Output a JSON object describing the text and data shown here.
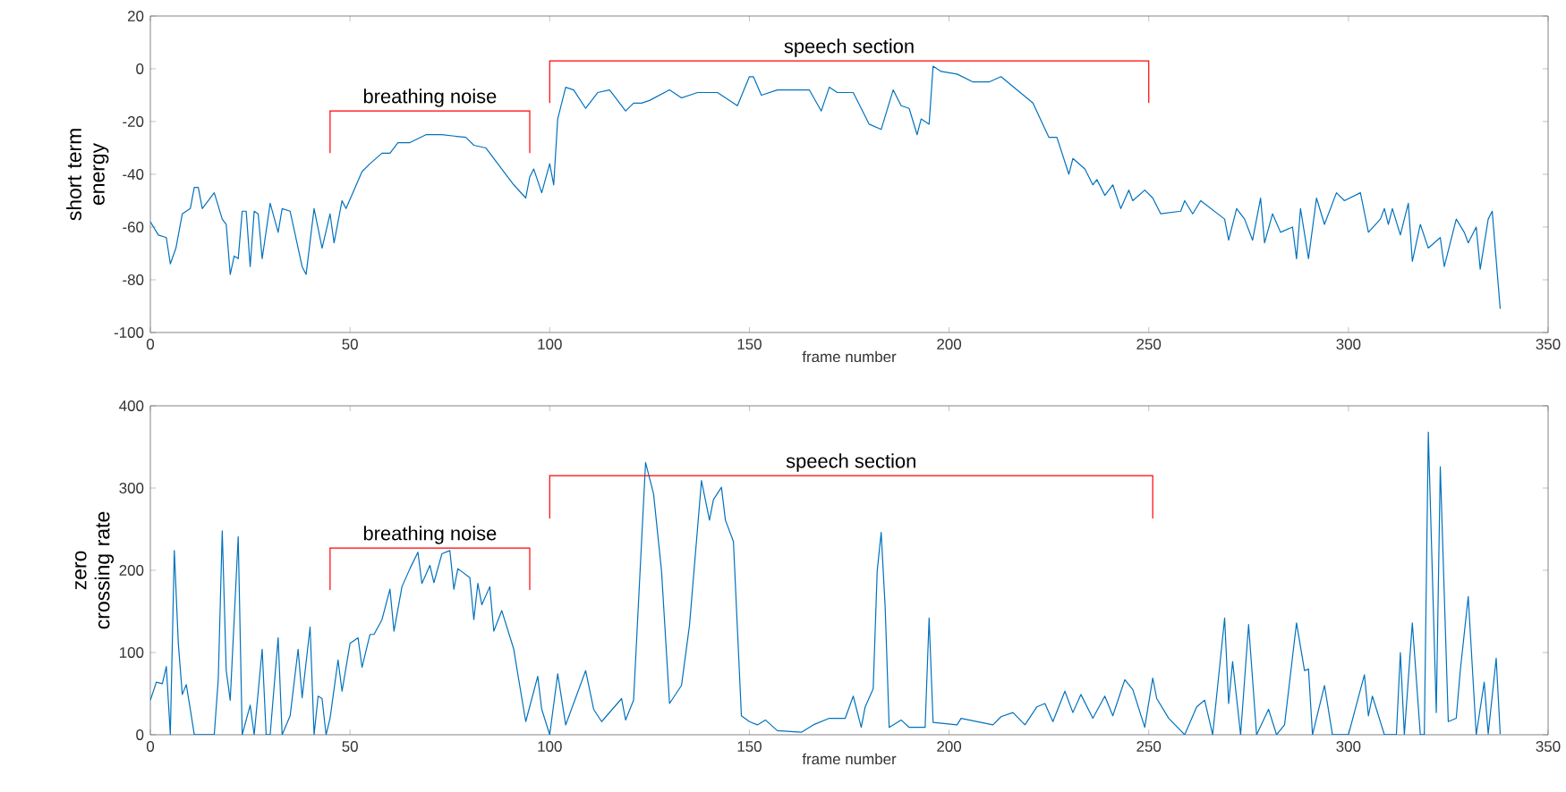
{
  "chart_data": [
    {
      "type": "line",
      "xlabel": "frame number",
      "ylabel": "short term energy",
      "xlim": [
        0,
        350
      ],
      "ylim": [
        -100,
        20
      ],
      "xticks": [
        0,
        50,
        100,
        150,
        200,
        250,
        300,
        350
      ],
      "yticks": [
        -100,
        -80,
        -60,
        -40,
        -20,
        0,
        20
      ],
      "grid": false,
      "annotations": [
        "breathing noise",
        "speech section"
      ],
      "series": [
        {
          "color": "#0072bd",
          "x": [
            0,
            2,
            4,
            5,
            6.4,
            8,
            10,
            11,
            12,
            13,
            16,
            18,
            19,
            20,
            21,
            22,
            23,
            24,
            25,
            26,
            27,
            28,
            30,
            32,
            33,
            35,
            38,
            39,
            41,
            43,
            45,
            46,
            48,
            49,
            53,
            55,
            58,
            60,
            62,
            65,
            69,
            73,
            79,
            81,
            84,
            88,
            91,
            94,
            95,
            96,
            98,
            100,
            101,
            102,
            104,
            106,
            109,
            110,
            112,
            115,
            117,
            119,
            121,
            123,
            125,
            130,
            133,
            137,
            142,
            147,
            150,
            151,
            153,
            157,
            161,
            165,
            168,
            170,
            172,
            176,
            180,
            183,
            186,
            188,
            190,
            192,
            193,
            195,
            196,
            198,
            202,
            206,
            210,
            213,
            217,
            221,
            225,
            227,
            230,
            231,
            234,
            236,
            237,
            239,
            241,
            243,
            245,
            246,
            249,
            251,
            253,
            258,
            259,
            261,
            263,
            269,
            270,
            272,
            274,
            276,
            278,
            279,
            281,
            283,
            286,
            287,
            288,
            290,
            292,
            294,
            297,
            299,
            303,
            305,
            308,
            309,
            310,
            311,
            313,
            315,
            316,
            318,
            320,
            323,
            324,
            327,
            329,
            330,
            332,
            333,
            335,
            336,
            338
          ],
          "values": [
            -58,
            -63,
            -64,
            -74,
            -68,
            -55,
            -53,
            -45,
            -45,
            -53,
            -47,
            -57,
            -59,
            -78,
            -71,
            -72,
            -54,
            -54,
            -75,
            -54,
            -55,
            -72,
            -51,
            -62,
            -53,
            -54,
            -75,
            -78,
            -53,
            -68,
            -55,
            -66,
            -50,
            -53,
            -39,
            -36,
            -32,
            -32,
            -28,
            -28,
            -25,
            -25,
            -26,
            -29,
            -30,
            -38,
            -44,
            -49,
            -41,
            -38,
            -47,
            -36,
            -44,
            -19,
            -7,
            -8,
            -15,
            -13,
            -9,
            -8,
            -12,
            -16,
            -13,
            -13,
            -12,
            -8,
            -11,
            -9,
            -9,
            -14,
            -3,
            -3,
            -10,
            -8,
            -8,
            -8,
            -16,
            -7,
            -9,
            -9,
            -21,
            -23,
            -8,
            -14,
            -15,
            -25,
            -19,
            -21,
            1,
            -1,
            -2,
            -5,
            -5,
            -3,
            -8,
            -13,
            -26,
            -26,
            -40,
            -34,
            -38,
            -44,
            -42,
            -48,
            -44,
            -53,
            -46,
            -50,
            -46,
            -49,
            -55,
            -54,
            -50,
            -55,
            -50,
            -57,
            -65,
            -53,
            -57,
            -65,
            -49,
            -66,
            -55,
            -62,
            -60,
            -72,
            -53,
            -72,
            -49,
            -59,
            -47,
            -50,
            -47,
            -62,
            -57,
            -53,
            -59,
            -53,
            -63,
            -51,
            -73,
            -59,
            -68,
            -64,
            -75,
            -57,
            -62,
            -66,
            -60,
            -76,
            -57,
            -54,
            -91
          ]
        }
      ]
    },
    {
      "type": "line",
      "xlabel": "frame number",
      "ylabel": "zero crossing rate",
      "xlim": [
        0,
        350
      ],
      "ylim": [
        0,
        400
      ],
      "xticks": [
        0,
        50,
        100,
        150,
        200,
        250,
        300,
        350
      ],
      "yticks": [
        0,
        100,
        200,
        300,
        400
      ],
      "grid": false,
      "annotations": [
        "breathing noise",
        "speech section"
      ],
      "series": [
        {
          "color": "#0072bd",
          "x": [
            0,
            1.5,
            3,
            4,
            5,
            6,
            7,
            8,
            9,
            10,
            11,
            16,
            17,
            18,
            19,
            20,
            22,
            23,
            25,
            26,
            28,
            29,
            30,
            32,
            33,
            35,
            37,
            38,
            40,
            41,
            42,
            43,
            44,
            45,
            47,
            48,
            50,
            52,
            53,
            55,
            56,
            58,
            60,
            61,
            63,
            65,
            67,
            68,
            70,
            71,
            73,
            75,
            76,
            77,
            80,
            81,
            82,
            83,
            85,
            86,
            88,
            91,
            92,
            94,
            97,
            98,
            100,
            102,
            104,
            109,
            111,
            113,
            118,
            119,
            121,
            124,
            126,
            128,
            130,
            133,
            135,
            138,
            140,
            141,
            143,
            144,
            146,
            148,
            150,
            152,
            154,
            157,
            163,
            166,
            170,
            174,
            176,
            178,
            179,
            181,
            182,
            183,
            184,
            185,
            188,
            190,
            194,
            195,
            196,
            202,
            203,
            211,
            213,
            216,
            219,
            222,
            224,
            226,
            229,
            231,
            233,
            236,
            239,
            241,
            244,
            246,
            249,
            251,
            252,
            255,
            259,
            262,
            264,
            266,
            269,
            270,
            271,
            273,
            275,
            277,
            280,
            282,
            284,
            287,
            289,
            290,
            291,
            294,
            296,
            300,
            304,
            305,
            306,
            309,
            312,
            313,
            314,
            316,
            318,
            319,
            320,
            322,
            323,
            325,
            327,
            328,
            330,
            332,
            334,
            335,
            337,
            338
          ],
          "values": [
            42,
            64,
            62,
            83,
            0,
            224,
            111,
            49,
            61,
            31,
            0,
            0,
            67,
            248,
            78,
            42,
            241,
            0,
            36,
            0,
            104,
            0,
            0,
            118,
            0,
            23,
            104,
            45,
            131,
            0,
            47,
            44,
            0,
            20,
            91,
            53,
            111,
            118,
            82,
            122,
            122,
            140,
            177,
            126,
            180,
            202,
            222,
            184,
            206,
            185,
            220,
            224,
            177,
            202,
            191,
            140,
            184,
            158,
            180,
            126,
            151,
            104,
            74,
            16,
            71,
            31,
            0,
            74,
            12,
            78,
            31,
            16,
            44,
            18,
            42,
            331,
            293,
            199,
            38,
            60,
            133,
            309,
            261,
            286,
            301,
            261,
            235,
            23,
            16,
            12,
            18,
            5,
            3,
            12,
            20,
            20,
            47,
            9,
            34,
            56,
            199,
            246,
            155,
            9,
            18,
            9,
            9,
            142,
            15,
            12,
            20,
            12,
            22,
            27,
            12,
            34,
            38,
            16,
            53,
            27,
            49,
            20,
            47,
            23,
            67,
            55,
            9,
            69,
            44,
            20,
            0,
            34,
            42,
            0,
            142,
            38,
            89,
            0,
            134,
            0,
            31,
            0,
            12,
            136,
            78,
            80,
            0,
            60,
            0,
            0,
            73,
            23,
            47,
            0,
            0,
            100,
            0,
            136,
            0,
            0,
            368,
            27,
            326,
            16,
            20,
            78,
            168,
            0,
            64,
            1,
            93,
            1
          ]
        }
      ]
    }
  ]
}
